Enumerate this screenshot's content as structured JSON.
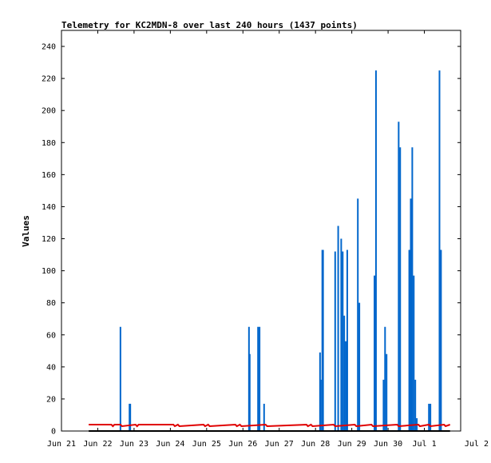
{
  "chart_data": {
    "type": "line",
    "title": "Telemetry for KC2MDN-8 over last 240 hours (1437 points)",
    "xlabel": "",
    "ylabel": "Values",
    "xlim": [
      "2024-06-21",
      "2024-07-02"
    ],
    "ylim": [
      0,
      250
    ],
    "grid": false,
    "legend": "none",
    "x_ticks": [
      "2024-06-21",
      "2024-06-22",
      "2024-06-23",
      "2024-06-24",
      "2024-06-25",
      "2024-06-26",
      "2024-06-27",
      "2024-06-28",
      "2024-06-29",
      "2024-06-30",
      "2024-07-01",
      "2024-07-02"
    ],
    "x_tick_labels": [
      "Jun 21",
      "Jun 22",
      "Jun 23",
      "Jun 24",
      "Jun 25",
      "Jun 26",
      "Jun 27",
      "Jun 28",
      "Jun 29",
      "Jun 30",
      "Jul 1",
      "Jul 2"
    ],
    "y_ticks": [
      0,
      20,
      40,
      60,
      80,
      100,
      120,
      140,
      160,
      180,
      200,
      220,
      240
    ],
    "y_tick_labels": [
      "0",
      "20",
      "40",
      "60",
      "80",
      "100",
      "120",
      "140",
      "160",
      "180",
      "200",
      "220",
      "240"
    ],
    "series": [
      {
        "color": "#0066cc",
        "style": "spikes",
        "x": [
          "2024-06-22 15:00",
          "2024-06-22 21:00",
          "2024-06-22 21:30",
          "2024-06-26 04:00",
          "2024-06-26 04:30",
          "2024-06-26 10:00",
          "2024-06-26 11:00",
          "2024-06-26 14:00",
          "2024-06-28 03:00",
          "2024-06-28 03:30",
          "2024-06-28 04:30",
          "2024-06-28 05:00",
          "2024-06-28 13:00",
          "2024-06-28 15:00",
          "2024-06-28 17:00",
          "2024-06-28 18:00",
          "2024-06-28 19:00",
          "2024-06-28 20:00",
          "2024-06-28 21:00",
          "2024-06-29 04:00",
          "2024-06-29 05:00",
          "2024-06-29 15:00",
          "2024-06-29 16:00",
          "2024-06-29 21:00",
          "2024-06-29 22:00",
          "2024-06-29 23:00",
          "2024-06-30 07:00",
          "2024-06-30 08:00",
          "2024-06-30 14:00",
          "2024-06-30 15:00",
          "2024-06-30 16:00",
          "2024-06-30 17:00",
          "2024-06-30 18:00",
          "2024-06-30 19:00",
          "2024-07-01 03:00",
          "2024-07-01 04:00",
          "2024-07-01 10:00",
          "2024-07-01 11:00"
        ],
        "y": [
          65,
          17,
          17,
          65,
          48,
          65,
          65,
          17,
          49,
          32,
          113,
          113,
          112,
          128,
          120,
          112,
          72,
          56,
          113,
          145,
          80,
          97,
          225,
          32,
          65,
          48,
          193,
          177,
          113,
          145,
          177,
          97,
          32,
          8,
          17,
          17,
          225,
          113
        ]
      },
      {
        "color": "#e00000",
        "style": "line",
        "x": [
          "2024-06-21 18:00",
          "2024-06-22 09:00",
          "2024-06-22 10:00",
          "2024-06-22 11:00",
          "2024-06-22 15:00",
          "2024-06-22 16:00",
          "2024-06-23 01:00",
          "2024-06-23 02:00",
          "2024-06-23 03:00",
          "2024-06-24 02:00",
          "2024-06-24 03:00",
          "2024-06-24 05:00",
          "2024-06-24 06:00",
          "2024-06-24 22:00",
          "2024-06-24 23:00",
          "2024-06-25 01:00",
          "2024-06-25 02:00",
          "2024-06-25 19:00",
          "2024-06-25 20:00",
          "2024-06-25 22:00",
          "2024-06-25 23:00",
          "2024-06-26 15:00",
          "2024-06-26 16:00",
          "2024-06-27 18:00",
          "2024-06-27 19:00",
          "2024-06-27 21:00",
          "2024-06-27 22:00",
          "2024-06-28 12:00",
          "2024-06-28 13:00",
          "2024-06-29 02:00",
          "2024-06-29 03:00",
          "2024-06-29 13:00",
          "2024-06-29 14:00",
          "2024-06-30 06:00",
          "2024-06-30 07:00",
          "2024-06-30 20:00",
          "2024-06-30 21:00",
          "2024-07-01 03:00",
          "2024-07-01 04:00",
          "2024-07-01 13:00",
          "2024-07-01 14:00",
          "2024-07-01 17:00"
        ],
        "y": [
          4,
          4,
          3,
          4,
          4,
          3,
          4,
          3,
          4,
          4,
          3,
          4,
          3,
          4,
          3,
          4,
          3,
          4,
          3,
          4,
          3,
          4,
          3,
          4,
          3,
          4,
          3,
          4,
          3,
          4,
          3,
          4,
          3,
          4,
          3,
          4,
          3,
          4,
          3,
          4,
          3,
          4
        ]
      },
      {
        "color": "#000000",
        "style": "line",
        "x": [
          "2024-06-21 18:00",
          "2024-07-01 17:00"
        ],
        "y": [
          0,
          0
        ]
      }
    ]
  }
}
